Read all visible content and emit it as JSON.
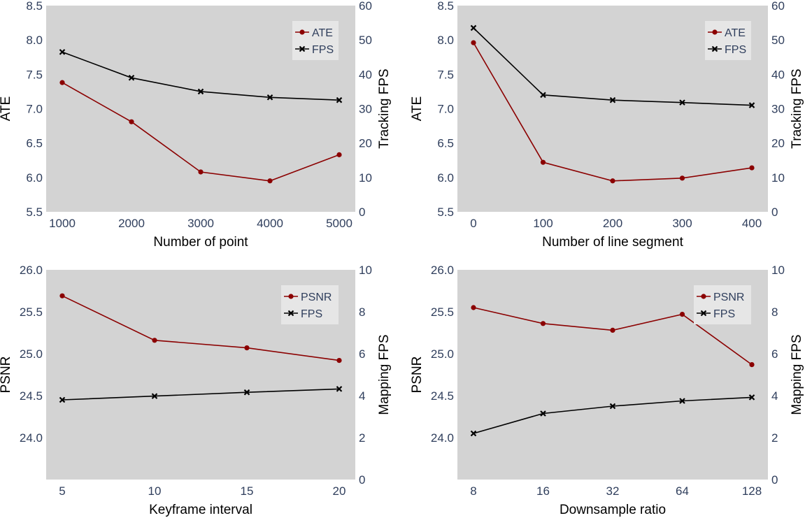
{
  "colors": {
    "plot_bg": "#d3d3d3",
    "primary_series": "#8b0000",
    "fps_series": "#000000",
    "legend_bg": "#e6e6e6"
  },
  "chart_data": [
    {
      "type": "line",
      "categories": [
        "1000",
        "2000",
        "3000",
        "4000",
        "5000"
      ],
      "xlabel": "Number of point",
      "ylabel": "ATE",
      "ylabel_right": "Tracking FPS",
      "ylim": [
        5.5,
        8.5
      ],
      "ylim_right": [
        0,
        60
      ],
      "yticks": [
        "5.5",
        "6.0",
        "6.5",
        "7.0",
        "7.5",
        "8.0",
        "8.5"
      ],
      "yticks_right": [
        "0",
        "10",
        "20",
        "30",
        "40",
        "50",
        "60"
      ],
      "legend_position": "top-right",
      "series": [
        {
          "name": "ATE",
          "axis": "left",
          "marker": "circle",
          "values": [
            7.38,
            6.81,
            6.08,
            5.95,
            6.33
          ]
        },
        {
          "name": "FPS",
          "axis": "right",
          "marker": "x",
          "values": [
            46.5,
            39.0,
            35.0,
            33.3,
            32.5
          ]
        }
      ]
    },
    {
      "type": "line",
      "categories": [
        "0",
        "100",
        "200",
        "300",
        "400"
      ],
      "xlabel": "Number of line segment",
      "ylabel": "ATE",
      "ylabel_right": "Tracking FPS",
      "ylim": [
        5.5,
        8.5
      ],
      "ylim_right": [
        0,
        60
      ],
      "yticks": [
        "5.5",
        "6.0",
        "6.5",
        "7.0",
        "7.5",
        "8.0",
        "8.5"
      ],
      "yticks_right": [
        "0",
        "10",
        "20",
        "30",
        "40",
        "50",
        "60"
      ],
      "legend_position": "top-right",
      "series": [
        {
          "name": "ATE",
          "axis": "left",
          "marker": "circle",
          "values": [
            7.96,
            6.22,
            5.95,
            5.99,
            6.14
          ]
        },
        {
          "name": "FPS",
          "axis": "right",
          "marker": "x",
          "values": [
            53.5,
            34.0,
            32.5,
            31.8,
            31.0
          ]
        }
      ]
    },
    {
      "type": "line",
      "categories": [
        "5",
        "10",
        "15",
        "20"
      ],
      "xlabel": "Keyframe interval",
      "ylabel": "PSNR",
      "ylabel_right": "Mapping FPS",
      "ylim": [
        23.5,
        26.0
      ],
      "ylim_right": [
        0,
        10
      ],
      "yticks": [
        "24.0",
        "24.5",
        "25.0",
        "25.5",
        "26.0"
      ],
      "yticks_right": [
        "0",
        "2",
        "4",
        "6",
        "8",
        "10"
      ],
      "legend_position": "top-right",
      "series": [
        {
          "name": "PSNR",
          "axis": "left",
          "marker": "circle",
          "values": [
            25.69,
            25.16,
            25.07,
            24.92
          ]
        },
        {
          "name": "FPS",
          "axis": "right",
          "marker": "x",
          "values": [
            3.8,
            3.98,
            4.16,
            4.32
          ]
        }
      ]
    },
    {
      "type": "line",
      "categories": [
        "8",
        "16",
        "32",
        "64",
        "128"
      ],
      "xlabel": "Downsample ratio",
      "ylabel": "PSNR",
      "ylabel_right": "Mapping FPS",
      "ylim": [
        23.5,
        26.0
      ],
      "ylim_right": [
        0,
        10
      ],
      "yticks": [
        "24.0",
        "24.5",
        "25.0",
        "25.5",
        "26.0"
      ],
      "yticks_right": [
        "0",
        "2",
        "4",
        "6",
        "8",
        "10"
      ],
      "legend_position": "top-right",
      "series": [
        {
          "name": "PSNR",
          "axis": "left",
          "marker": "circle",
          "values": [
            25.55,
            25.36,
            25.28,
            25.47,
            24.87
          ]
        },
        {
          "name": "FPS",
          "axis": "right",
          "marker": "x",
          "values": [
            2.2,
            3.15,
            3.5,
            3.75,
            3.92
          ]
        }
      ]
    }
  ]
}
